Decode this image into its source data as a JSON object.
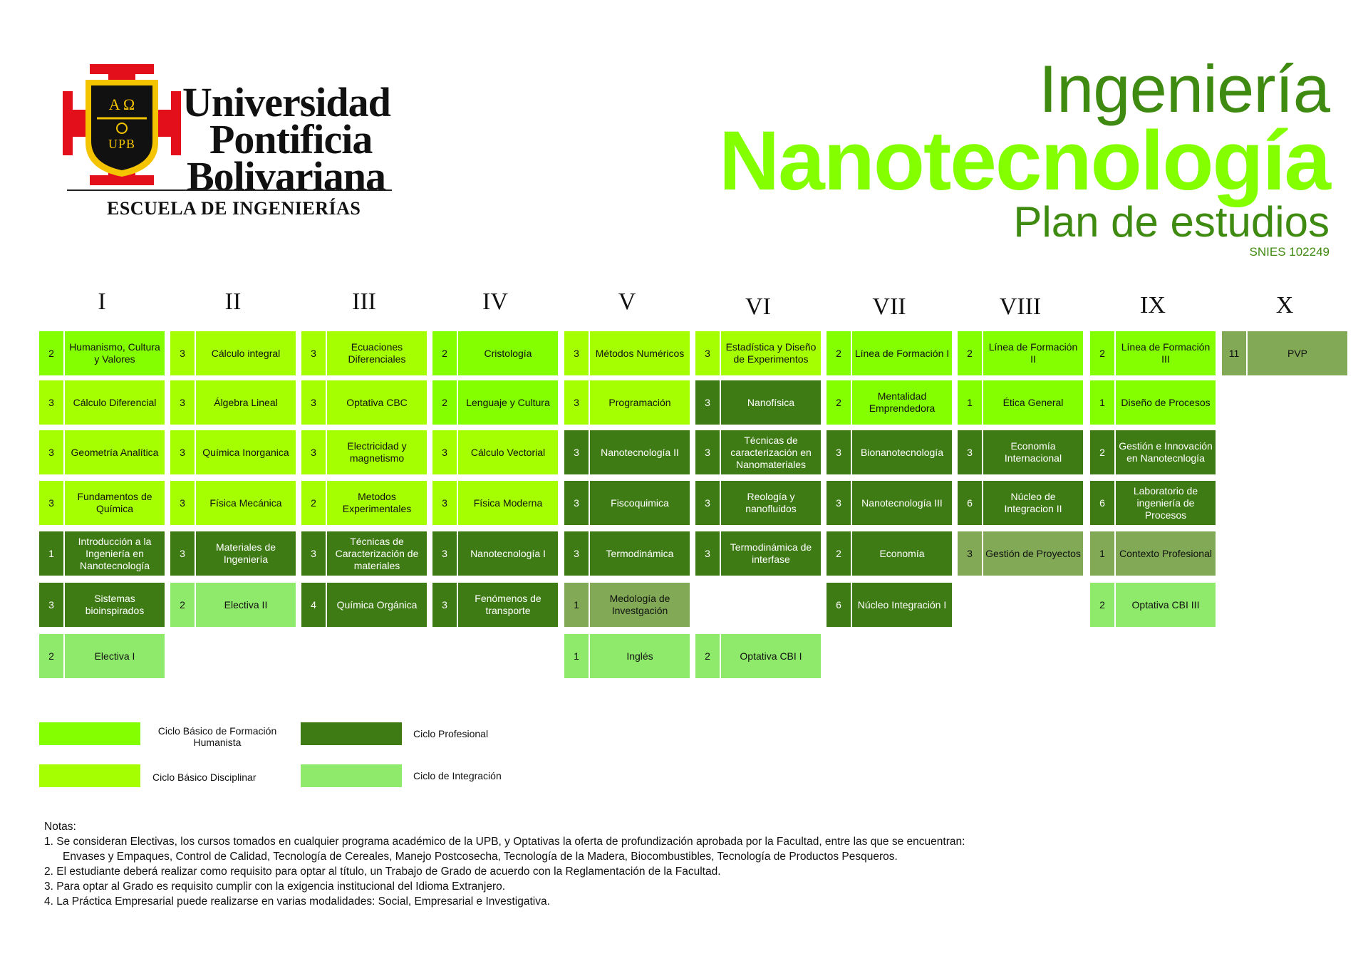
{
  "logo": {
    "shield_letters": "A Ω",
    "shield_abbr": "UPB",
    "line1": "Universidad",
    "line2": "Pontificia",
    "line3": "Bolivariana",
    "school": "ESCUELA DE INGENIERÍAS"
  },
  "title": {
    "line1": "Ingeniería",
    "line2": "Nanotecnología",
    "line3": "Plan de estudios",
    "snies": "SNIES 102249"
  },
  "colors": {
    "humanista": "#84ff00",
    "disciplinar": "#a6ff00",
    "profesional": "#3f7b14",
    "integracion": "#8fea6b",
    "practica": "#82aa56"
  },
  "semesters": [
    {
      "label": "I",
      "courses": [
        {
          "credits": "2",
          "name": "Humanismo, Cultura y Valores",
          "cycle": "hum"
        },
        {
          "credits": "3",
          "name": "Cálculo Diferencial",
          "cycle": "dis"
        },
        {
          "credits": "3",
          "name": "Geometría Analítica",
          "cycle": "dis"
        },
        {
          "credits": "3",
          "name": "Fundamentos de Química",
          "cycle": "dis"
        },
        {
          "credits": "1",
          "name": "Introducción a la Ingeniería en Nanotecnología",
          "cycle": "pro"
        },
        {
          "credits": "3",
          "name": "Sistemas bioinspirados",
          "cycle": "pro"
        },
        {
          "credits": "2",
          "name": "Electiva I",
          "cycle": "int"
        }
      ]
    },
    {
      "label": "II",
      "courses": [
        {
          "credits": "3",
          "name": "Cálculo integral",
          "cycle": "dis"
        },
        {
          "credits": "3",
          "name": "Álgebra Lineal",
          "cycle": "dis"
        },
        {
          "credits": "3",
          "name": "Química Inorganica",
          "cycle": "dis"
        },
        {
          "credits": "3",
          "name": "Física Mecánica",
          "cycle": "dis"
        },
        {
          "credits": "3",
          "name": "Materiales de Ingeniería",
          "cycle": "pro"
        },
        {
          "credits": "2",
          "name": "Electiva II",
          "cycle": "int"
        }
      ]
    },
    {
      "label": "III",
      "courses": [
        {
          "credits": "3",
          "name": "Ecuaciones Diferenciales",
          "cycle": "dis"
        },
        {
          "credits": "3",
          "name": "Optativa CBC",
          "cycle": "dis"
        },
        {
          "credits": "3",
          "name": "Electricidad y magnetismo",
          "cycle": "dis"
        },
        {
          "credits": "2",
          "name": "Metodos Experimentales",
          "cycle": "dis"
        },
        {
          "credits": "3",
          "name": "Técnicas de Caracterización de materiales",
          "cycle": "pro"
        },
        {
          "credits": "4",
          "name": "Química Orgánica",
          "cycle": "pro"
        }
      ]
    },
    {
      "label": "IV",
      "courses": [
        {
          "credits": "2",
          "name": "Cristología",
          "cycle": "hum"
        },
        {
          "credits": "2",
          "name": "Lenguaje y Cultura",
          "cycle": "hum"
        },
        {
          "credits": "3",
          "name": "Cálculo Vectorial",
          "cycle": "dis"
        },
        {
          "credits": "3",
          "name": "Física Moderna",
          "cycle": "dis"
        },
        {
          "credits": "3",
          "name": "Nanotecnología I",
          "cycle": "pro"
        },
        {
          "credits": "3",
          "name": "Fenómenos de transporte",
          "cycle": "pro"
        }
      ]
    },
    {
      "label": "V",
      "courses": [
        {
          "credits": "3",
          "name": "Métodos Numéricos",
          "cycle": "dis"
        },
        {
          "credits": "3",
          "name": "Programación",
          "cycle": "dis"
        },
        {
          "credits": "3",
          "name": "Nanotecnología II",
          "cycle": "pro"
        },
        {
          "credits": "3",
          "name": "Fiscoquimica",
          "cycle": "pro"
        },
        {
          "credits": "3",
          "name": "Termodinámica",
          "cycle": "pro"
        },
        {
          "credits": "1",
          "name": "Medología de Investgación",
          "cycle": "olive"
        },
        {
          "credits": "1",
          "name": "Inglés",
          "cycle": "int"
        }
      ]
    },
    {
      "label": "VI",
      "courses": [
        {
          "credits": "3",
          "name": "Estadística y Diseño de Experimentos",
          "cycle": "dis"
        },
        {
          "credits": "3",
          "name": "Nanofísica",
          "cycle": "pro"
        },
        {
          "credits": "3",
          "name": "Técnicas de caracterización en Nanomateriales",
          "cycle": "pro"
        },
        {
          "credits": "3",
          "name": "Reología y nanofluidos",
          "cycle": "pro"
        },
        {
          "credits": "3",
          "name": "Termodinámica de interfase",
          "cycle": "pro"
        },
        {
          "credits": "2",
          "name": "Optativa CBI I",
          "cycle": "int"
        }
      ]
    },
    {
      "label": "VII",
      "courses": [
        {
          "credits": "2",
          "name": "Línea de Formación I",
          "cycle": "hum"
        },
        {
          "credits": "2",
          "name": "Mentalidad Emprendedora",
          "cycle": "hum"
        },
        {
          "credits": "3",
          "name": "Bionanotecnología",
          "cycle": "pro"
        },
        {
          "credits": "3",
          "name": "Nanotecnología III",
          "cycle": "pro"
        },
        {
          "credits": "2",
          "name": "Economía",
          "cycle": "pro"
        },
        {
          "credits": "6",
          "name": "Núcleo Integración I",
          "cycle": "pro"
        }
      ]
    },
    {
      "label": "VIII",
      "courses": [
        {
          "credits": "2",
          "name": "Línea de Formación II",
          "cycle": "hum"
        },
        {
          "credits": "1",
          "name": "Ética General",
          "cycle": "hum"
        },
        {
          "credits": "3",
          "name": "Economía Internacional",
          "cycle": "pro"
        },
        {
          "credits": "6",
          "name": "Núcleo de Integracion II",
          "cycle": "pro"
        },
        {
          "credits": "3",
          "name": "Gestión de Proyectos",
          "cycle": "olive"
        }
      ]
    },
    {
      "label": "IX",
      "courses": [
        {
          "credits": "2",
          "name": "Línea de Formación III",
          "cycle": "hum"
        },
        {
          "credits": "1",
          "name": "Diseño de Procesos",
          "cycle": "hum"
        },
        {
          "credits": "2",
          "name": "Gestión e Innovación en Nanotecnlogía",
          "cycle": "pro"
        },
        {
          "credits": "6",
          "name": "Laboratorio de ingeniería de Procesos",
          "cycle": "pro"
        },
        {
          "credits": "1",
          "name": "Contexto Profesional",
          "cycle": "olive"
        },
        {
          "credits": "2",
          "name": "Optativa CBI III",
          "cycle": "int"
        }
      ]
    },
    {
      "label": "X",
      "courses": [
        {
          "credits": "11",
          "name": "PVP",
          "cycle": "olive"
        }
      ]
    }
  ],
  "legend": {
    "humanista": "Ciclo Básico de Formación Humanista",
    "disciplinar": "Ciclo Básico Disciplinar",
    "profesional": "Ciclo Profesional",
    "integracion": "Ciclo de Integración"
  },
  "notes": {
    "heading": "Notas:",
    "n1a": "1.   Se consideran Electivas, los cursos tomados en cualquier programa  académico de la UPB, y Optativas la oferta de profundización aprobada por la Facultad, entre las que se encuentran:",
    "n1b": "Envases y Empaques, Control de Calidad, Tecnología de Cereales, Manejo Postcosecha, Tecnología de la Madera, Biocombustibles, Tecnología de Productos Pesqueros.",
    "n2": "2.  El estudiante deberá realizar como requisito para optar al título, un Trabajo de Grado de acuerdo con la Reglamentación de la Facultad.",
    "n3": "3.  Para optar al Grado es requisito cumplir con la exigencia institucional del Idioma Extranjero.",
    "n4": "4.  La Práctica Empresarial puede realizarse en varias modalidades: Social, Empresarial e Investigativa."
  }
}
